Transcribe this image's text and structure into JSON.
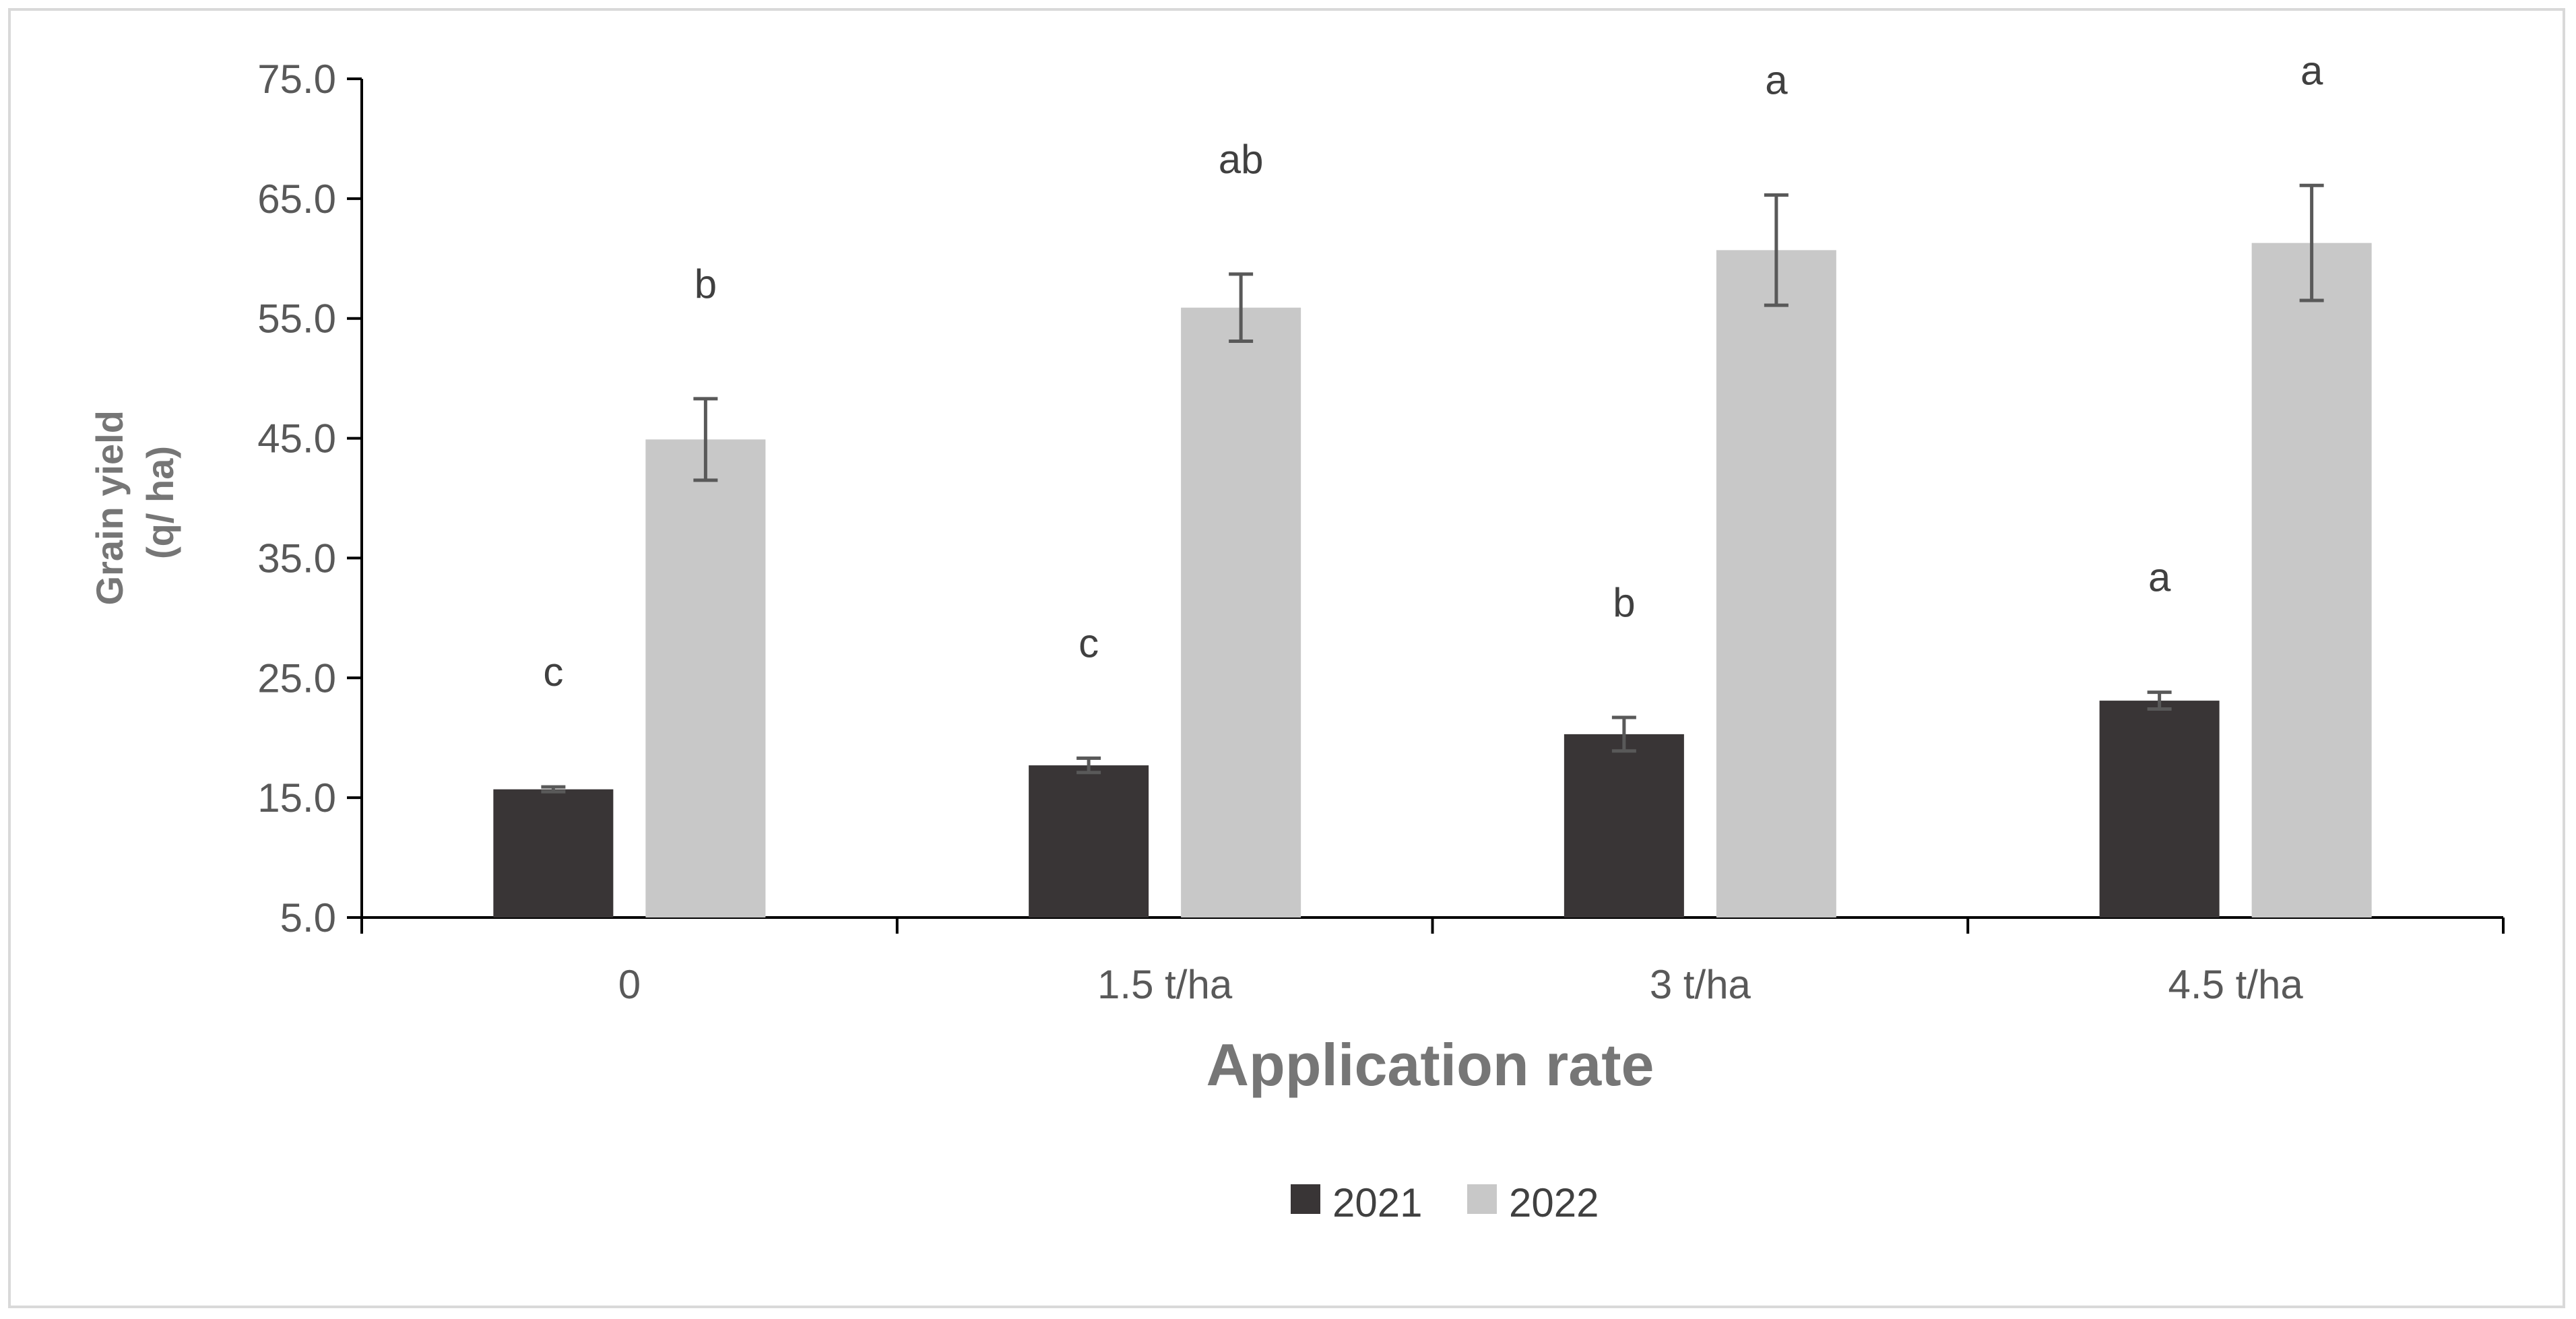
{
  "chart_data": {
    "type": "bar",
    "title": "",
    "xlabel": "Application rate",
    "ylabel_lines": [
      "Grain yield",
      "(q/ ha)"
    ],
    "categories": [
      "0",
      "1.5 t/ha",
      "3 t/ha",
      "4.5 t/ha"
    ],
    "ylim": [
      5.0,
      75.0
    ],
    "yticks": [
      "5.0",
      "15.0",
      "25.0",
      "35.0",
      "45.0",
      "55.0",
      "65.0",
      "75.0"
    ],
    "ytick_values": [
      5,
      15,
      25,
      35,
      45,
      55,
      65,
      75
    ],
    "grid": false,
    "legend_position": "bottom",
    "series": [
      {
        "name": "2021",
        "color": "#393536",
        "values": [
          15.7,
          17.7,
          20.3,
          23.1
        ],
        "errors": [
          0.2,
          0.6,
          1.4,
          0.7
        ],
        "letters": [
          "c",
          "c",
          "b",
          "a"
        ]
      },
      {
        "name": "2022",
        "color": "#c8c8c8",
        "values": [
          44.9,
          55.9,
          60.7,
          61.3
        ],
        "errors": [
          3.4,
          2.8,
          4.6,
          4.8
        ],
        "letters": [
          "b",
          "ab",
          "a",
          "a"
        ]
      }
    ],
    "errorbar_color": "#595959",
    "axis_color": "#000000"
  }
}
